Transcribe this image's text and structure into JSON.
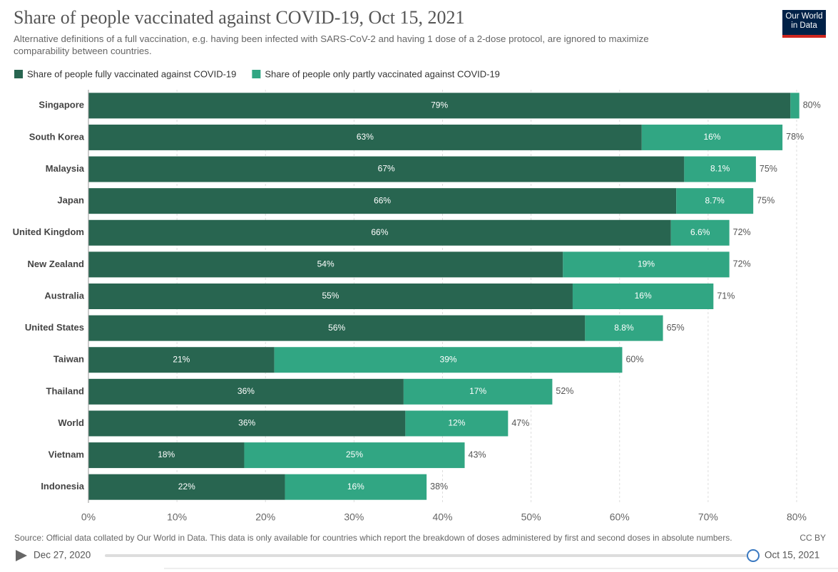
{
  "title": "Share of people vaccinated against COVID-19, Oct 15, 2021",
  "subtitle": "Alternative definitions of a full vaccination, e.g. having been infected with SARS-CoV-2 and having 1 dose of a 2-dose protocol, are ignored to maximize comparability between countries.",
  "logo": [
    "Our World",
    "in Data"
  ],
  "source": "Source: Official data collated by Our World in Data. This data is only available for countries which report the breakdown of doses administered by first and second doses in absolute numbers.",
  "license": "CC BY",
  "timeline": {
    "start": "Dec 27, 2020",
    "end": "Oct 15, 2021"
  },
  "chart_data": {
    "type": "stacked-bar-horizontal",
    "categories": [
      "Singapore",
      "South Korea",
      "Malaysia",
      "Japan",
      "United Kingdom",
      "New Zealand",
      "Australia",
      "United States",
      "Taiwan",
      "Thailand",
      "World",
      "Vietnam",
      "Indonesia"
    ],
    "series": [
      {
        "name": "Share of people fully vaccinated against COVID-19",
        "color": "#286550",
        "values": [
          79.3,
          62.5,
          67.3,
          66.4,
          65.8,
          53.6,
          54.7,
          56.1,
          21.0,
          35.6,
          35.8,
          17.6,
          22.2
        ],
        "value_labels": [
          "79%",
          "63%",
          "67%",
          "66%",
          "66%",
          "54%",
          "55%",
          "56%",
          "21%",
          "36%",
          "36%",
          "18%",
          "22%"
        ]
      },
      {
        "name": "Share of people only partly vaccinated against COVID-19",
        "color": "#31a683",
        "values": [
          1.0,
          15.9,
          8.1,
          8.7,
          6.6,
          18.8,
          15.9,
          8.8,
          39.3,
          16.8,
          11.6,
          24.9,
          16.0
        ],
        "value_labels": [
          null,
          "16%",
          "8.1%",
          "8.7%",
          "6.6%",
          "19%",
          "16%",
          "8.8%",
          "39%",
          "17%",
          "12%",
          "25%",
          "16%"
        ]
      }
    ],
    "totals": [
      80.3,
      78.4,
      75.4,
      75.1,
      72.4,
      72.4,
      70.6,
      64.9,
      60.3,
      52.4,
      47.4,
      42.5,
      38.2
    ],
    "total_labels": [
      "80%",
      "78%",
      "75%",
      "75%",
      "72%",
      "72%",
      "71%",
      "65%",
      "60%",
      "52%",
      "47%",
      "43%",
      "38%"
    ],
    "xlim": [
      0,
      80
    ],
    "xticks": [
      {
        "value": 0,
        "label": "0%"
      },
      {
        "value": 10,
        "label": "10%"
      },
      {
        "value": 20,
        "label": "20%"
      },
      {
        "value": 30,
        "label": "30%"
      },
      {
        "value": 40,
        "label": "40%"
      },
      {
        "value": 50,
        "label": "50%"
      },
      {
        "value": 60,
        "label": "60%"
      },
      {
        "value": 70,
        "label": "70%"
      },
      {
        "value": 80,
        "label": "80%"
      }
    ],
    "grid": true,
    "legend": "top-left"
  }
}
